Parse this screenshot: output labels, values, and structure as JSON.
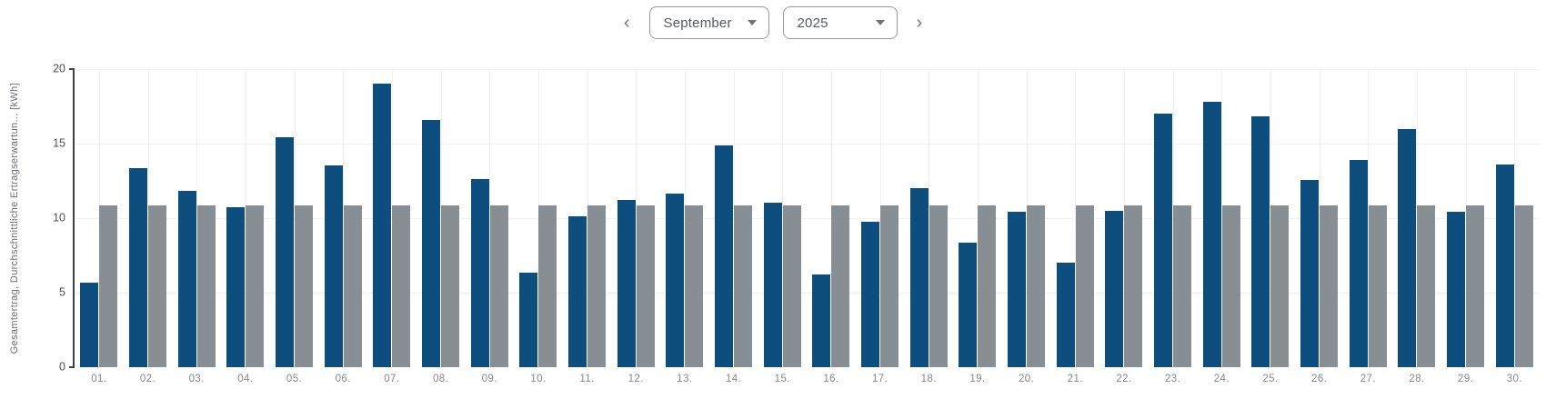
{
  "header": {
    "prev_label": "‹",
    "next_label": "›",
    "month_selected": "September",
    "year_selected": "2025"
  },
  "chart_data": {
    "type": "bar",
    "title": "",
    "xlabel": "",
    "ylabel": "Gesamtertrag, Durchschnittliche Ertragserwartun... [kWh]",
    "ylim": [
      0,
      20
    ],
    "yticks": [
      0,
      5,
      10,
      15,
      20
    ],
    "grid": true,
    "legend_position": "none",
    "categories": [
      "01.",
      "02.",
      "03.",
      "04.",
      "05.",
      "06.",
      "07.",
      "08.",
      "09.",
      "10.",
      "11.",
      "12.",
      "13.",
      "14.",
      "15.",
      "16.",
      "17.",
      "18.",
      "19.",
      "20.",
      "21.",
      "22.",
      "23.",
      "24.",
      "25.",
      "26.",
      "27.",
      "28.",
      "29.",
      "30."
    ],
    "series": [
      {
        "name": "Gesamtertrag",
        "color": "#0e4e7e",
        "values": [
          5.65,
          13.35,
          11.8,
          10.75,
          15.4,
          13.55,
          19.0,
          16.6,
          12.65,
          6.35,
          10.1,
          11.25,
          11.65,
          14.85,
          11.05,
          6.2,
          9.75,
          12.0,
          8.35,
          10.45,
          7.0,
          10.5,
          17.0,
          17.8,
          16.85,
          12.55,
          13.9,
          16.0,
          10.45,
          13.6
        ]
      },
      {
        "name": "Durchschnittliche Ertragserwartung",
        "color": "#878e94",
        "values": [
          10.85,
          10.85,
          10.85,
          10.85,
          10.85,
          10.85,
          10.85,
          10.85,
          10.85,
          10.85,
          10.85,
          10.85,
          10.85,
          10.85,
          10.85,
          10.85,
          10.85,
          10.85,
          10.85,
          10.85,
          10.85,
          10.85,
          10.85,
          10.85,
          10.85,
          10.85,
          10.85,
          10.85,
          10.85,
          10.85
        ]
      }
    ]
  }
}
